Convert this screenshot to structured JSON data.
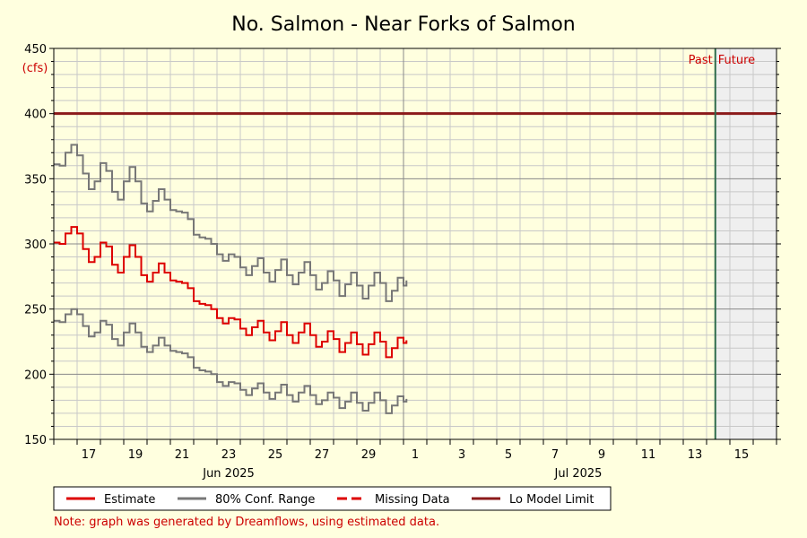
{
  "chart_data": {
    "type": "line",
    "title": "No. Salmon - Near Forks of Salmon",
    "ylabel": "(cfs)",
    "ylim": [
      150,
      450
    ],
    "y_ticks": [
      150,
      200,
      250,
      300,
      350,
      400,
      450
    ],
    "x_range_days": [
      "2025-06-16",
      "2025-07-17"
    ],
    "x_tick_labels": [
      {
        "date": "2025-06-17",
        "label": "17"
      },
      {
        "date": "2025-06-19",
        "label": "19"
      },
      {
        "date": "2025-06-21",
        "label": "21"
      },
      {
        "date": "2025-06-23",
        "label": "23"
      },
      {
        "date": "2025-06-25",
        "label": "25"
      },
      {
        "date": "2025-06-27",
        "label": "27"
      },
      {
        "date": "2025-06-29",
        "label": "29"
      },
      {
        "date": "2025-07-01",
        "label": "1"
      },
      {
        "date": "2025-07-03",
        "label": "3"
      },
      {
        "date": "2025-07-05",
        "label": "5"
      },
      {
        "date": "2025-07-07",
        "label": "7"
      },
      {
        "date": "2025-07-09",
        "label": "9"
      },
      {
        "date": "2025-07-11",
        "label": "11"
      },
      {
        "date": "2025-07-13",
        "label": "13"
      },
      {
        "date": "2025-07-15",
        "label": "15"
      }
    ],
    "month_labels": [
      {
        "date": "2025-06-23",
        "label": "Jun 2025"
      },
      {
        "date": "2025-07-08",
        "label": "Jul 2025"
      }
    ],
    "month_divider": "2025-07-01",
    "now_date": "2025-07-14T09:00",
    "past_label": "Past",
    "future_label": "Future",
    "lo_model_limit": 400,
    "series": [
      {
        "name": "Estimate",
        "color": "#dd0000",
        "points": [
          [
            "2025-06-16T00:00",
            301
          ],
          [
            "2025-06-16T06:00",
            300
          ],
          [
            "2025-06-16T12:00",
            308
          ],
          [
            "2025-06-16T18:00",
            313
          ],
          [
            "2025-06-17T00:00",
            308
          ],
          [
            "2025-06-17T06:00",
            296
          ],
          [
            "2025-06-17T12:00",
            286
          ],
          [
            "2025-06-17T18:00",
            290
          ],
          [
            "2025-06-18T00:00",
            301
          ],
          [
            "2025-06-18T06:00",
            298
          ],
          [
            "2025-06-18T12:00",
            284
          ],
          [
            "2025-06-18T18:00",
            278
          ],
          [
            "2025-06-19T00:00",
            290
          ],
          [
            "2025-06-19T06:00",
            299
          ],
          [
            "2025-06-19T12:00",
            290
          ],
          [
            "2025-06-19T18:00",
            276
          ],
          [
            "2025-06-20T00:00",
            271
          ],
          [
            "2025-06-20T06:00",
            278
          ],
          [
            "2025-06-20T12:00",
            285
          ],
          [
            "2025-06-20T18:00",
            278
          ],
          [
            "2025-06-21T00:00",
            272
          ],
          [
            "2025-06-21T06:00",
            271
          ],
          [
            "2025-06-21T12:00",
            270
          ],
          [
            "2025-06-21T18:00",
            266
          ],
          [
            "2025-06-22T00:00",
            256
          ],
          [
            "2025-06-22T06:00",
            254
          ],
          [
            "2025-06-22T12:00",
            253
          ],
          [
            "2025-06-22T18:00",
            250
          ],
          [
            "2025-06-23T00:00",
            243
          ],
          [
            "2025-06-23T06:00",
            239
          ],
          [
            "2025-06-23T12:00",
            243
          ],
          [
            "2025-06-23T18:00",
            242
          ],
          [
            "2025-06-24T00:00",
            235
          ],
          [
            "2025-06-24T06:00",
            230
          ],
          [
            "2025-06-24T12:00",
            236
          ],
          [
            "2025-06-24T18:00",
            241
          ],
          [
            "2025-06-25T00:00",
            232
          ],
          [
            "2025-06-25T06:00",
            226
          ],
          [
            "2025-06-25T12:00",
            233
          ],
          [
            "2025-06-25T18:00",
            240
          ],
          [
            "2025-06-26T00:00",
            230
          ],
          [
            "2025-06-26T06:00",
            224
          ],
          [
            "2025-06-26T12:00",
            232
          ],
          [
            "2025-06-26T18:00",
            239
          ],
          [
            "2025-06-27T00:00",
            230
          ],
          [
            "2025-06-27T06:00",
            221
          ],
          [
            "2025-06-27T12:00",
            225
          ],
          [
            "2025-06-27T18:00",
            233
          ],
          [
            "2025-06-28T00:00",
            227
          ],
          [
            "2025-06-28T06:00",
            217
          ],
          [
            "2025-06-28T12:00",
            224
          ],
          [
            "2025-06-28T18:00",
            232
          ],
          [
            "2025-06-29T00:00",
            223
          ],
          [
            "2025-06-29T06:00",
            215
          ],
          [
            "2025-06-29T12:00",
            223
          ],
          [
            "2025-06-29T18:00",
            232
          ],
          [
            "2025-06-30T00:00",
            225
          ],
          [
            "2025-06-30T06:00",
            213
          ],
          [
            "2025-06-30T12:00",
            220
          ],
          [
            "2025-06-30T18:00",
            228
          ],
          [
            "2025-07-01T00:00",
            224
          ],
          [
            "2025-07-01T03:00",
            226
          ]
        ]
      },
      {
        "name": "80% Conf. Range",
        "color": "#777777",
        "bands": {
          "upper": [
            [
              "2025-06-16T00:00",
              361
            ],
            [
              "2025-06-16T06:00",
              360
            ],
            [
              "2025-06-16T12:00",
              370
            ],
            [
              "2025-06-16T18:00",
              376
            ],
            [
              "2025-06-17T00:00",
              368
            ],
            [
              "2025-06-17T06:00",
              354
            ],
            [
              "2025-06-17T12:00",
              342
            ],
            [
              "2025-06-17T18:00",
              348
            ],
            [
              "2025-06-18T00:00",
              362
            ],
            [
              "2025-06-18T06:00",
              356
            ],
            [
              "2025-06-18T12:00",
              340
            ],
            [
              "2025-06-18T18:00",
              334
            ],
            [
              "2025-06-19T00:00",
              348
            ],
            [
              "2025-06-19T06:00",
              359
            ],
            [
              "2025-06-19T12:00",
              348
            ],
            [
              "2025-06-19T18:00",
              331
            ],
            [
              "2025-06-20T00:00",
              325
            ],
            [
              "2025-06-20T06:00",
              333
            ],
            [
              "2025-06-20T12:00",
              342
            ],
            [
              "2025-06-20T18:00",
              334
            ],
            [
              "2025-06-21T00:00",
              326
            ],
            [
              "2025-06-21T06:00",
              325
            ],
            [
              "2025-06-21T12:00",
              324
            ],
            [
              "2025-06-21T18:00",
              319
            ],
            [
              "2025-06-22T00:00",
              307
            ],
            [
              "2025-06-22T06:00",
              305
            ],
            [
              "2025-06-22T12:00",
              304
            ],
            [
              "2025-06-22T18:00",
              300
            ],
            [
              "2025-06-23T00:00",
              292
            ],
            [
              "2025-06-23T06:00",
              287
            ],
            [
              "2025-06-23T12:00",
              292
            ],
            [
              "2025-06-23T18:00",
              290
            ],
            [
              "2025-06-24T00:00",
              282
            ],
            [
              "2025-06-24T06:00",
              276
            ],
            [
              "2025-06-24T12:00",
              283
            ],
            [
              "2025-06-24T18:00",
              289
            ],
            [
              "2025-06-25T00:00",
              278
            ],
            [
              "2025-06-25T06:00",
              271
            ],
            [
              "2025-06-25T12:00",
              280
            ],
            [
              "2025-06-25T18:00",
              288
            ],
            [
              "2025-06-26T00:00",
              276
            ],
            [
              "2025-06-26T06:00",
              269
            ],
            [
              "2025-06-26T12:00",
              278
            ],
            [
              "2025-06-26T18:00",
              286
            ],
            [
              "2025-06-27T00:00",
              276
            ],
            [
              "2025-06-27T06:00",
              265
            ],
            [
              "2025-06-27T12:00",
              270
            ],
            [
              "2025-06-27T18:00",
              279
            ],
            [
              "2025-06-28T00:00",
              272
            ],
            [
              "2025-06-28T06:00",
              260
            ],
            [
              "2025-06-28T12:00",
              269
            ],
            [
              "2025-06-28T18:00",
              278
            ],
            [
              "2025-06-29T00:00",
              268
            ],
            [
              "2025-06-29T06:00",
              258
            ],
            [
              "2025-06-29T12:00",
              268
            ],
            [
              "2025-06-29T18:00",
              278
            ],
            [
              "2025-06-30T00:00",
              270
            ],
            [
              "2025-06-30T06:00",
              256
            ],
            [
              "2025-06-30T12:00",
              264
            ],
            [
              "2025-06-30T18:00",
              274
            ],
            [
              "2025-07-01T00:00",
              268
            ],
            [
              "2025-07-01T03:00",
              272
            ]
          ],
          "lower": [
            [
              "2025-06-16T00:00",
              241
            ],
            [
              "2025-06-16T06:00",
              240
            ],
            [
              "2025-06-16T12:00",
              246
            ],
            [
              "2025-06-16T18:00",
              250
            ],
            [
              "2025-06-17T00:00",
              246
            ],
            [
              "2025-06-17T06:00",
              237
            ],
            [
              "2025-06-17T12:00",
              229
            ],
            [
              "2025-06-17T18:00",
              232
            ],
            [
              "2025-06-18T00:00",
              241
            ],
            [
              "2025-06-18T06:00",
              238
            ],
            [
              "2025-06-18T12:00",
              227
            ],
            [
              "2025-06-18T18:00",
              222
            ],
            [
              "2025-06-19T00:00",
              232
            ],
            [
              "2025-06-19T06:00",
              239
            ],
            [
              "2025-06-19T12:00",
              232
            ],
            [
              "2025-06-19T18:00",
              221
            ],
            [
              "2025-06-20T00:00",
              217
            ],
            [
              "2025-06-20T06:00",
              222
            ],
            [
              "2025-06-20T12:00",
              228
            ],
            [
              "2025-06-20T18:00",
              222
            ],
            [
              "2025-06-21T00:00",
              218
            ],
            [
              "2025-06-21T06:00",
              217
            ],
            [
              "2025-06-21T12:00",
              216
            ],
            [
              "2025-06-21T18:00",
              213
            ],
            [
              "2025-06-22T00:00",
              205
            ],
            [
              "2025-06-22T06:00",
              203
            ],
            [
              "2025-06-22T12:00",
              202
            ],
            [
              "2025-06-22T18:00",
              200
            ],
            [
              "2025-06-23T00:00",
              194
            ],
            [
              "2025-06-23T06:00",
              191
            ],
            [
              "2025-06-23T12:00",
              194
            ],
            [
              "2025-06-23T18:00",
              193
            ],
            [
              "2025-06-24T00:00",
              188
            ],
            [
              "2025-06-24T06:00",
              184
            ],
            [
              "2025-06-24T12:00",
              189
            ],
            [
              "2025-06-24T18:00",
              193
            ],
            [
              "2025-06-25T00:00",
              186
            ],
            [
              "2025-06-25T06:00",
              181
            ],
            [
              "2025-06-25T12:00",
              186
            ],
            [
              "2025-06-25T18:00",
              192
            ],
            [
              "2025-06-26T00:00",
              184
            ],
            [
              "2025-06-26T06:00",
              179
            ],
            [
              "2025-06-26T12:00",
              186
            ],
            [
              "2025-06-26T18:00",
              191
            ],
            [
              "2025-06-27T00:00",
              184
            ],
            [
              "2025-06-27T06:00",
              177
            ],
            [
              "2025-06-27T12:00",
              180
            ],
            [
              "2025-06-27T18:00",
              186
            ],
            [
              "2025-06-28T00:00",
              182
            ],
            [
              "2025-06-28T06:00",
              174
            ],
            [
              "2025-06-28T12:00",
              179
            ],
            [
              "2025-06-28T18:00",
              186
            ],
            [
              "2025-06-29T00:00",
              178
            ],
            [
              "2025-06-29T06:00",
              172
            ],
            [
              "2025-06-29T12:00",
              178
            ],
            [
              "2025-06-29T18:00",
              186
            ],
            [
              "2025-06-30T00:00",
              180
            ],
            [
              "2025-06-30T06:00",
              170
            ],
            [
              "2025-06-30T12:00",
              176
            ],
            [
              "2025-06-30T18:00",
              183
            ],
            [
              "2025-07-01T00:00",
              179
            ],
            [
              "2025-07-01T03:00",
              181
            ]
          ]
        }
      }
    ],
    "legend": [
      {
        "label": "Estimate",
        "color": "#dd0000",
        "style": "solid"
      },
      {
        "label": "80% Conf. Range",
        "color": "#777777",
        "style": "solid"
      },
      {
        "label": "Missing Data",
        "color": "#dd0000",
        "style": "dashed"
      },
      {
        "label": "Lo Model Limit",
        "color": "#8b1a1a",
        "style": "solid"
      }
    ],
    "legend_position": "bottom",
    "note": "Note: graph was generated by Dreamflows, using estimated data.",
    "colors": {
      "background": "#FFFFDF",
      "plot_background": "#FFFFDF",
      "future_shade": "#EFEFEF",
      "grid_major": "#888888",
      "grid_minor": "#C8C8C8",
      "lo_limit": "#8b1a1a",
      "now_line": "#2e6b4a",
      "estimate": "#dd0000",
      "conf_range": "#777777"
    }
  }
}
